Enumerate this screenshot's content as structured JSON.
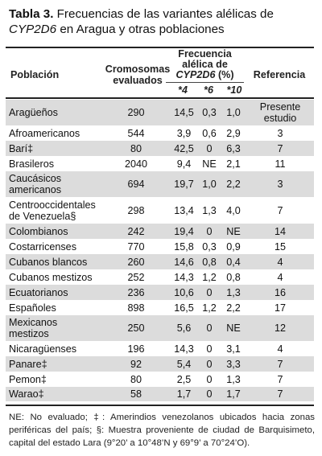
{
  "title": {
    "label": "Tabla 3.",
    "text_before": " Frecuencias de las variantes alélicas de ",
    "gene": "CYP2D6",
    "text_after": " en Aragua y otras poblaciones"
  },
  "headers": {
    "poblacion": "Población",
    "cromosomas": "Cromosomas evaluados",
    "frecuencia_line1": "Frecuencia",
    "frecuencia_line2": "alélica de",
    "frecuencia_gene": "CYP2D6",
    "frecuencia_unit": " (%)",
    "allele_4": "*4",
    "allele_6": "*6",
    "allele_10": "*10",
    "referencia": "Referencia"
  },
  "rows": [
    {
      "poblacion": "Aragüeños",
      "cromosomas": "290",
      "a4": "14,5",
      "a6": "0,3",
      "a10": "1,0",
      "ref": "Presente estudio"
    },
    {
      "poblacion": "Afroamericanos",
      "cromosomas": "544",
      "a4": "3,9",
      "a6": "0,6",
      "a10": "2,9",
      "ref": "3"
    },
    {
      "poblacion": "Barí‡",
      "cromosomas": "80",
      "a4": "42,5",
      "a6": "0",
      "a10": "6,3",
      "ref": "7"
    },
    {
      "poblacion": "Brasileros",
      "cromosomas": "2040",
      "a4": "9,4",
      "a6": "NE",
      "a10": "2,1",
      "ref": "11"
    },
    {
      "poblacion": "Caucásicos americanos",
      "cromosomas": "694",
      "a4": "19,7",
      "a6": "1,0",
      "a10": "2,2",
      "ref": "3"
    },
    {
      "poblacion": "Centrooccidentales de Venezuela§",
      "cromosomas": "298",
      "a4": "13,4",
      "a6": "1,3",
      "a10": "4,0",
      "ref": "7"
    },
    {
      "poblacion": "Colombianos",
      "cromosomas": "242",
      "a4": "19,4",
      "a6": "0",
      "a10": "NE",
      "ref": "14"
    },
    {
      "poblacion": "Costarricenses",
      "cromosomas": "770",
      "a4": "15,8",
      "a6": "0,3",
      "a10": "0,9",
      "ref": "15"
    },
    {
      "poblacion": "Cubanos blancos",
      "cromosomas": "260",
      "a4": "14,6",
      "a6": "0,8",
      "a10": "0,4",
      "ref": "4"
    },
    {
      "poblacion": "Cubanos mestizos",
      "cromosomas": "252",
      "a4": "14,3",
      "a6": "1,2",
      "a10": "0,8",
      "ref": "4"
    },
    {
      "poblacion": "Ecuatorianos",
      "cromosomas": "236",
      "a4": "10,6",
      "a6": "0",
      "a10": "1,3",
      "ref": "16"
    },
    {
      "poblacion": "Españoles",
      "cromosomas": "898",
      "a4": "16,5",
      "a6": "1,2",
      "a10": "2,2",
      "ref": "17"
    },
    {
      "poblacion": "Mexicanos mestizos",
      "cromosomas": "250",
      "a4": "5,6",
      "a6": "0",
      "a10": "NE",
      "ref": "12"
    },
    {
      "poblacion": "Nicaragüenses",
      "cromosomas": "196",
      "a4": "14,3",
      "a6": "0",
      "a10": "3,1",
      "ref": "4"
    },
    {
      "poblacion": "Panare‡",
      "cromosomas": "92",
      "a4": "5,4",
      "a6": "0",
      "a10": "3,3",
      "ref": "7"
    },
    {
      "poblacion": "Pemon‡",
      "cromosomas": "80",
      "a4": "2,5",
      "a6": "0",
      "a10": "1,3",
      "ref": "7"
    },
    {
      "poblacion": "Warao‡",
      "cromosomas": "58",
      "a4": "1,7",
      "a6": "0",
      "a10": "1,7",
      "ref": "7"
    }
  ],
  "notes": "NE: No evaluado; ‡: Amerindios venezolanos ubicados hacia zonas periféricas del país; §: Muestra proveniente de ciudad de Barquisimeto, capital del estado Lara (9°20’ a 10°48’N y 69°9’ a 70°24’O)."
}
